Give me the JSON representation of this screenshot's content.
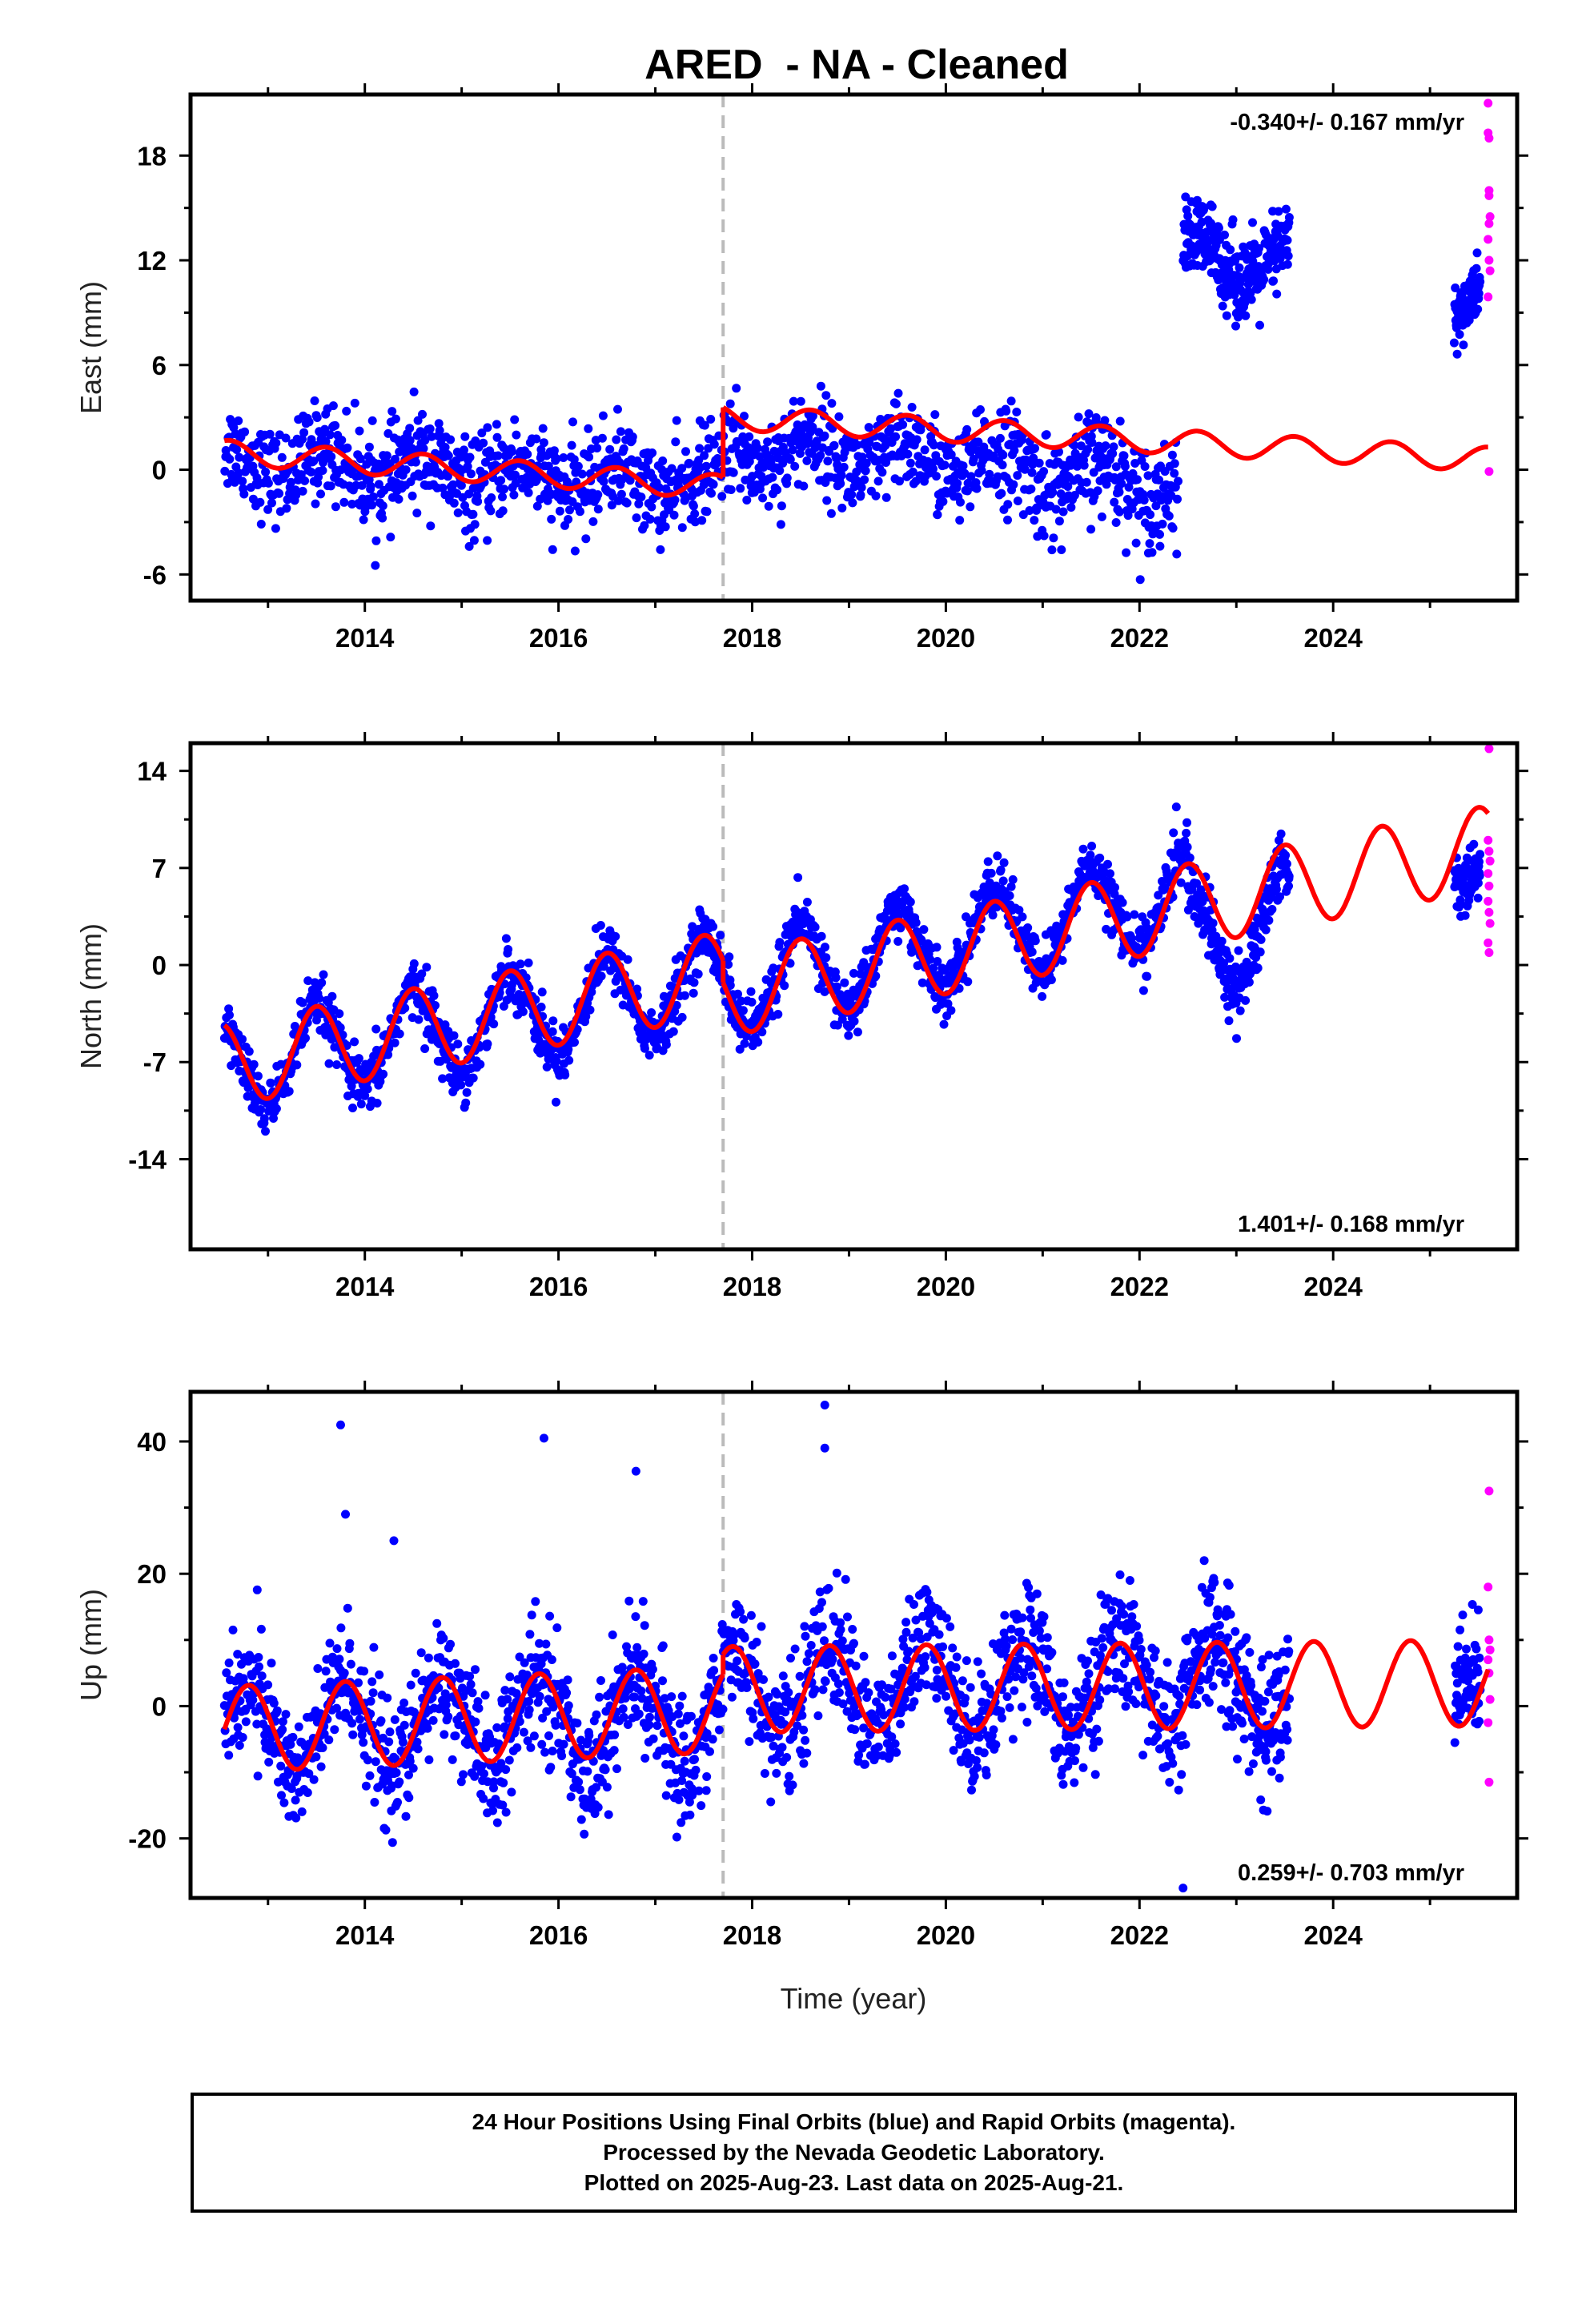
{
  "title": "ARED  - NA - Cleaned",
  "footer": {
    "line1": "24 Hour Positions Using Final Orbits (blue) and Rapid Orbits (magenta).",
    "line2": "Processed by the Nevada Geodetic Laboratory.",
    "line3": "Plotted on 2025-Aug-23. Last data on 2025-Aug-21."
  },
  "colors": {
    "final_orbits": "#0000ff",
    "rapid_orbits": "#ff00ff",
    "model_fit": "#ff0000",
    "offset_line": "#bbbbbb"
  },
  "chart_data": [
    {
      "type": "scatter",
      "panel": "east",
      "ylabel": "East (mm)",
      "rate_text": "-0.340+/- 0.167 mm/yr",
      "xlim": [
        2012.2,
        2025.9
      ],
      "ylim": [
        -7.5,
        21.5
      ],
      "xticks": [
        2014,
        2016,
        2018,
        2020,
        2022,
        2024
      ],
      "yticks": [
        -6,
        0,
        6,
        12,
        18
      ],
      "offset_epoch": 2017.7,
      "series": [
        {
          "role": "final",
          "style": "blue-dots",
          "segments": [
            {
              "x": [
                2012.55,
                2013.35
              ],
              "trend": [
                0.5,
                0.3
              ],
              "amp": 0.8,
              "phase": 0.35,
              "noise": 1.3,
              "n": 110
            },
            {
              "x": [
                2013.35,
                2015.2
              ],
              "trend": [
                0.4,
                -0.3
              ],
              "amp": 0.9,
              "phase": 0.35,
              "noise": 1.35,
              "n": 300
            },
            {
              "x": [
                2015.2,
                2017.7
              ],
              "trend": [
                -0.3,
                -0.8
              ],
              "amp": 0.8,
              "phase": 0.35,
              "noise": 1.3,
              "n": 380
            },
            {
              "x": [
                2017.7,
                2020.5
              ],
              "trend": [
                1.2,
                0.3
              ],
              "amp": 0.9,
              "phase": 0.35,
              "noise": 1.35,
              "n": 420
            },
            {
              "x": [
                2020.5,
                2022.4
              ],
              "trend": [
                0.0,
                -0.8
              ],
              "amp": 1.0,
              "phase": 0.35,
              "noise": 1.45,
              "n": 300
            },
            {
              "x": [
                2022.45,
                2023.55
              ],
              "trend": [
                12.0,
                12.0
              ],
              "amp": 1.2,
              "phase": 0.35,
              "noise": 1.2,
              "n": 260
            },
            {
              "x": [
                2025.25,
                2025.52
              ],
              "trend": [
                8.6,
                10.4
              ],
              "amp": 0.0,
              "phase": 0.35,
              "noise": 0.9,
              "n": 70
            }
          ]
        },
        {
          "role": "rapid",
          "style": "magenta-dots",
          "x": [
            2025.6,
            2025.6,
            2025.61,
            2025.61,
            2025.61,
            2025.62,
            2025.61,
            2025.6,
            2025.61,
            2025.62,
            2025.6,
            2025.61
          ],
          "y": [
            21.0,
            19.3,
            19.0,
            16.0,
            15.7,
            14.5,
            14.1,
            13.2,
            12.0,
            11.4,
            9.9,
            -0.1
          ]
        },
        {
          "role": "model",
          "style": "red-line",
          "segments": [
            {
              "x": [
                2012.55,
                2017.7
              ],
              "y": [
                1.0,
                -1.0
              ],
              "amp": 0.7,
              "phase": 0.35
            },
            {
              "x": [
                2017.7,
                2025.6
              ],
              "y": [
                3.0,
                0.6
              ],
              "amp": 0.7,
              "phase": 0.35
            }
          ]
        }
      ]
    },
    {
      "type": "scatter",
      "panel": "north",
      "ylabel": "North (mm)",
      "rate_text": "1.401+/- 0.168 mm/yr",
      "xlim": [
        2012.2,
        2025.9
      ],
      "ylim": [
        -20.5,
        16.0
      ],
      "xticks": [
        2014,
        2016,
        2018,
        2020,
        2022,
        2024
      ],
      "yticks": [
        -14,
        -7,
        0,
        7,
        14
      ],
      "offset_epoch": 2017.7,
      "series": [
        {
          "role": "final",
          "style": "blue-dots",
          "segments": [
            {
              "x": [
                2012.55,
                2017.7
              ],
              "trend": [
                -7.5,
                -1.0
              ],
              "amp": 3.2,
              "phase": 0.25,
              "noise": 1.05,
              "n": 850
            },
            {
              "x": [
                2017.7,
                2022.5
              ],
              "trend": [
                -1.8,
                5.2
              ],
              "amp": 3.3,
              "phase": 0.25,
              "noise": 1.05,
              "n": 780
            },
            {
              "x": [
                2022.5,
                2023.55
              ],
              "trend": [
                1.5,
                3.5
              ],
              "amp": 4.0,
              "phase": 0.25,
              "noise": 1.2,
              "n": 220
            },
            {
              "x": [
                2025.25,
                2025.52
              ],
              "trend": [
                5.5,
                7.0
              ],
              "amp": 0.0,
              "phase": 0.25,
              "noise": 1.0,
              "n": 70
            }
          ]
        },
        {
          "role": "rapid",
          "style": "magenta-dots",
          "x": [
            2025.61,
            2025.6,
            2025.61,
            2025.62,
            2025.6,
            2025.61,
            2025.6,
            2025.61,
            2025.62,
            2025.6,
            2025.61
          ],
          "y": [
            15.6,
            9.0,
            8.2,
            7.5,
            6.6,
            5.7,
            4.6,
            3.8,
            3.0,
            1.6,
            0.9
          ]
        },
        {
          "role": "model",
          "style": "red-line",
          "segments": [
            {
              "x": [
                2012.55,
                2017.7
              ],
              "y": [
                -7.2,
                -0.6
              ],
              "amp": 3.0,
              "phase": 0.25
            },
            {
              "x": [
                2017.7,
                2025.6
              ],
              "y": [
                -2.2,
                8.5
              ],
              "amp": 3.0,
              "phase": 0.25
            }
          ]
        }
      ]
    },
    {
      "type": "scatter",
      "panel": "up",
      "ylabel": "Up (mm)",
      "rate_text": "0.259+/- 0.703 mm/yr",
      "xlabel": "Time (year)",
      "xlim": [
        2012.2,
        2025.9
      ],
      "ylim": [
        -29.0,
        47.5
      ],
      "xticks": [
        2014,
        2016,
        2018,
        2020,
        2022,
        2024
      ],
      "yticks": [
        -20,
        0,
        20,
        40
      ],
      "offset_epoch": 2017.7,
      "series": [
        {
          "role": "final",
          "style": "blue-dots",
          "segments": [
            {
              "x": [
                2012.55,
                2017.7
              ],
              "trend": [
                -3.5,
                -2.0
              ],
              "amp": 6.8,
              "phase": 0.55,
              "noise": 4.6,
              "n": 900
            },
            {
              "x": [
                2017.7,
                2022.5
              ],
              "trend": [
                2.5,
                3.5
              ],
              "amp": 6.8,
              "phase": 0.55,
              "noise": 4.6,
              "n": 820
            },
            {
              "x": [
                2022.5,
                2023.55
              ],
              "trend": [
                3.5,
                3.0
              ],
              "amp": 6.8,
              "phase": 0.55,
              "noise": 5.0,
              "n": 220
            },
            {
              "x": [
                2025.25,
                2025.52
              ],
              "trend": [
                2.0,
                5.0
              ],
              "amp": 0.0,
              "phase": 0.55,
              "noise": 4.5,
              "n": 70
            }
          ]
        },
        {
          "role": "final-outliers",
          "style": "blue-dots",
          "x": [
            2013.75,
            2015.85,
            2016.8,
            2018.75,
            2018.75,
            2014.3,
            2013.8,
            2022.45
          ],
          "y": [
            42.5,
            40.5,
            35.5,
            45.5,
            39.0,
            25.0,
            29.0,
            -27.5
          ]
        },
        {
          "role": "rapid",
          "style": "magenta-dots",
          "x": [
            2025.61,
            2025.6,
            2025.61,
            2025.62,
            2025.6,
            2025.61,
            2025.62,
            2025.6,
            2025.61
          ],
          "y": [
            32.5,
            18.0,
            10.0,
            8.5,
            7.0,
            5.0,
            1.0,
            -2.5,
            -11.5
          ]
        },
        {
          "role": "model",
          "style": "red-line",
          "segments": [
            {
              "x": [
                2012.55,
                2017.7
              ],
              "y": [
                -3.5,
                -0.5
              ],
              "amp": 6.5,
              "phase": 0.55
            },
            {
              "x": [
                2017.7,
                2025.6
              ],
              "y": [
                2.5,
                3.5
              ],
              "amp": 6.5,
              "phase": 0.55
            }
          ]
        }
      ]
    }
  ]
}
